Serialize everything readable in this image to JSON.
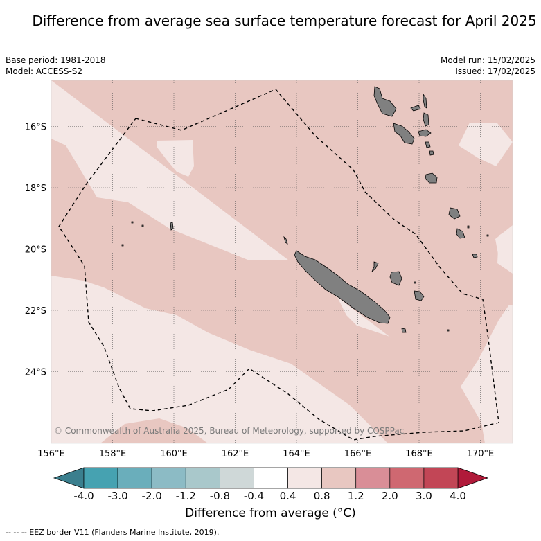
{
  "title": "Difference from average sea surface temperature forecast for April 2025",
  "meta": {
    "base_period": "Base period: 1981-2018",
    "model": "Model: ACCESS-S2",
    "model_run": "Model run: 15/02/2025",
    "issued": "Issued: 17/02/2025"
  },
  "map": {
    "lon_ticks": [
      "156°E",
      "158°E",
      "160°E",
      "162°E",
      "164°E",
      "166°E",
      "168°E",
      "170°E"
    ],
    "lat_ticks": [
      "16°S",
      "18°S",
      "20°S",
      "22°S",
      "24°S"
    ],
    "copyright": "© Commonwealth of Australia 2025, Bureau of Meteorology, supported by COSPPac",
    "colors": {
      "warm_0_4_0_8": "#f4e7e5",
      "warm_0_8_1_2": "#e8c7c1",
      "land": "#808080",
      "eez_border": "#000000"
    }
  },
  "colorbar": {
    "title": "Difference from average (°C)",
    "ticks": [
      "-4.0",
      "-3.0",
      "-2.0",
      "-1.2",
      "-0.8",
      "-0.4",
      "0.4",
      "0.8",
      "1.2",
      "2.0",
      "3.0",
      "4.0"
    ],
    "under_color": "#3b7f8e",
    "over_color": "#b01a3a",
    "colors": [
      "#46a2b1",
      "#6aaebb",
      "#8cbbc5",
      "#a9c8cb",
      "#cfd8d8",
      "#ffffff",
      "#f4e7e5",
      "#e8c7c1",
      "#d98e97",
      "#cf6871",
      "#c24656"
    ]
  },
  "footer": "--  --  -- EEZ border V11 (Flanders Marine Institute, 2019)."
}
